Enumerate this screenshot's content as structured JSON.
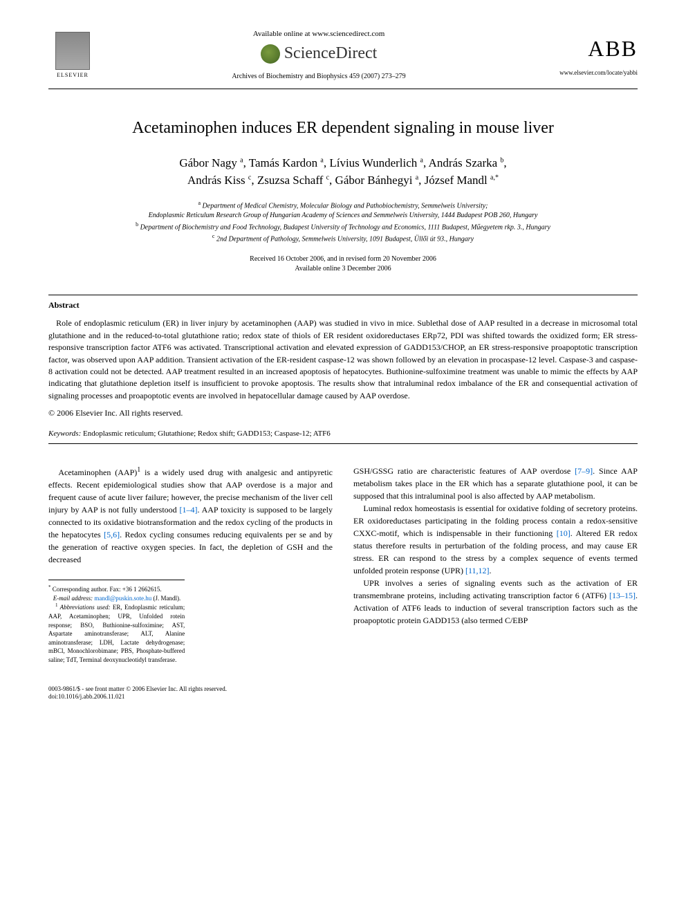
{
  "header": {
    "elsevier_label": "ELSEVIER",
    "available_online": "Available online at www.sciencedirect.com",
    "sciencedirect": "ScienceDirect",
    "journal_ref": "Archives of Biochemistry and Biophysics 459 (2007) 273–279",
    "abb_logo": "ABB",
    "journal_url": "www.elsevier.com/locate/yabbi"
  },
  "title": "Acetaminophen induces ER dependent signaling in mouse liver",
  "authors_line1": "Gábor Nagy ",
  "authors_sup1": "a",
  "authors_sep1": ", Tamás Kardon ",
  "authors_sup2": "a",
  "authors_sep2": ", Lívius Wunderlich ",
  "authors_sup3": "a",
  "authors_sep3": ", András Szarka ",
  "authors_sup4": "b",
  "authors_sep4": ",",
  "authors_line2": "András Kiss ",
  "authors_sup5": "c",
  "authors_sep5": ", Zsuzsa Schaff ",
  "authors_sup6": "c",
  "authors_sep6": ", Gábor Bánhegyi ",
  "authors_sup7": "a",
  "authors_sep7": ", József Mandl ",
  "authors_sup8": "a,*",
  "affiliations": {
    "a_sup": "a",
    "a": " Department of Medical Chemistry, Molecular Biology and Pathobiochemistry, Semmelweis University;",
    "a2": "Endoplasmic Reticulum Research Group of Hungarian Academy of Sciences and Semmelweis University, 1444 Budapest POB 260, Hungary",
    "b_sup": "b",
    "b": " Department of Biochemistry and Food Technology, Budapest University of Technology and Economics, 1111 Budapest, Műegyetem rkp. 3., Hungary",
    "c_sup": "c",
    "c": " 2nd Department of Pathology, Semmelweis University, 1091 Budapest, Üllői út 93., Hungary"
  },
  "dates": {
    "received": "Received 16 October 2006, and in revised form 20 November 2006",
    "available": "Available online 3 December 2006"
  },
  "abstract": {
    "heading": "Abstract",
    "body": "Role of endoplasmic reticulum (ER) in liver injury by acetaminophen (AAP) was studied in vivo in mice. Sublethal dose of AAP resulted in a decrease in microsomal total glutathione and in the reduced-to-total glutathione ratio; redox state of thiols of ER resident oxidoreductases ERp72, PDI was shifted towards the oxidized form; ER stress-responsive transcription factor ATF6 was activated. Transcriptional activation and elevated expression of GADD153/CHOP, an ER stress-responsive proapoptotic transcription factor, was observed upon AAP addition. Transient activation of the ER-resident caspase-12 was shown followed by an elevation in procaspase-12 level. Caspase-3 and caspase-8 activation could not be detected. AAP treatment resulted in an increased apoptosis of hepatocytes. Buthionine-sulfoximine treatment was unable to mimic the effects by AAP indicating that glutathione depletion itself is insufficient to provoke apoptosis. The results show that intraluminal redox imbalance of the ER and consequential activation of signaling processes and proapoptotic events are involved in hepatocellular damage caused by AAP overdose.",
    "copyright": "© 2006 Elsevier Inc. All rights reserved."
  },
  "keywords": {
    "label": "Keywords: ",
    "text": "Endoplasmic reticulum; Glutathione; Redox shift; GADD153; Caspase-12; ATF6"
  },
  "body": {
    "col1_p1_a": "Acetaminophen (AAP)",
    "col1_p1_sup": "1",
    "col1_p1_b": " is a widely used drug with analgesic and antipyretic effects. Recent epidemiological studies show that AAP overdose is a major and frequent cause of acute liver failure; however, the precise mechanism of the liver cell injury by AAP is not fully understood ",
    "col1_ref1": "[1–4]",
    "col1_p1_c": ". AAP toxicity is supposed to be largely connected to its oxidative biotransformation and the redox cycling of the products in the hepatocytes ",
    "col1_ref2": "[5,6]",
    "col1_p1_d": ". Redox cycling consumes reducing equivalents per se and by the generation of reactive oxygen species. In fact, the depletion of GSH and the decreased",
    "col2_p1_a": "GSH/GSSG ratio are characteristic features of AAP overdose ",
    "col2_ref1": "[7–9]",
    "col2_p1_b": ". Since AAP metabolism takes place in the ER which has a separate glutathione pool, it can be supposed that this intraluminal pool is also affected by AAP metabolism.",
    "col2_p2_a": "Luminal redox homeostasis is essential for oxidative folding of secretory proteins. ER oxidoreductases participating in the folding process contain a redox-sensitive CXXC-motif, which is indispensable in their functioning ",
    "col2_ref2": "[10]",
    "col2_p2_b": ". Altered ER redox status therefore results in perturbation of the folding process, and may cause ER stress. ER can respond to the stress by a complex sequence of events termed unfolded protein response (UPR) ",
    "col2_ref3": "[11,12]",
    "col2_p2_c": ".",
    "col2_p3_a": "UPR involves a series of signaling events such as the activation of ER transmembrane proteins, including activating transcription factor 6 (ATF6) ",
    "col2_ref4": "[13–15]",
    "col2_p3_b": ". Activation of ATF6 leads to induction of several transcription factors such as the proapoptotic protein GADD153 (also termed C/EBP"
  },
  "footnotes": {
    "corr_sup": "*",
    "corr": " Corresponding author. Fax: +36 1 2662615.",
    "email_label": "E-mail address: ",
    "email": "mandl@puskin.sote.hu",
    "email_tail": " (J. Mandl).",
    "abbr_sup": "1",
    "abbr_label": " Abbreviations used:",
    "abbr": " ER, Endoplasmic reticulum; AAP, Acetaminophen; UPR, Unfolded rotein response; BSO, Buthionine-sulfoximine; AST, Aspartate aminotransferase; ALT, Alanine aminotransferase; LDH, Lactate dehydrogenase; mBCl, Monochlorobimane; PBS, Phosphate-buffered saline; TdT, Terminal deoxynucleotidyl transferase."
  },
  "bottom": {
    "issn": "0003-9861/$ - see front matter © 2006 Elsevier Inc. All rights reserved.",
    "doi": "doi:10.1016/j.abb.2006.11.021"
  },
  "colors": {
    "link": "#0066cc",
    "text": "#000000",
    "background": "#ffffff",
    "elsevier_gray": "#888888",
    "sd_green": "#7a9b3e"
  },
  "typography": {
    "body_font": "Georgia, Times New Roman, serif",
    "title_fontsize": 24,
    "authors_fontsize": 17,
    "body_fontsize": 12,
    "footnote_fontsize": 9
  }
}
